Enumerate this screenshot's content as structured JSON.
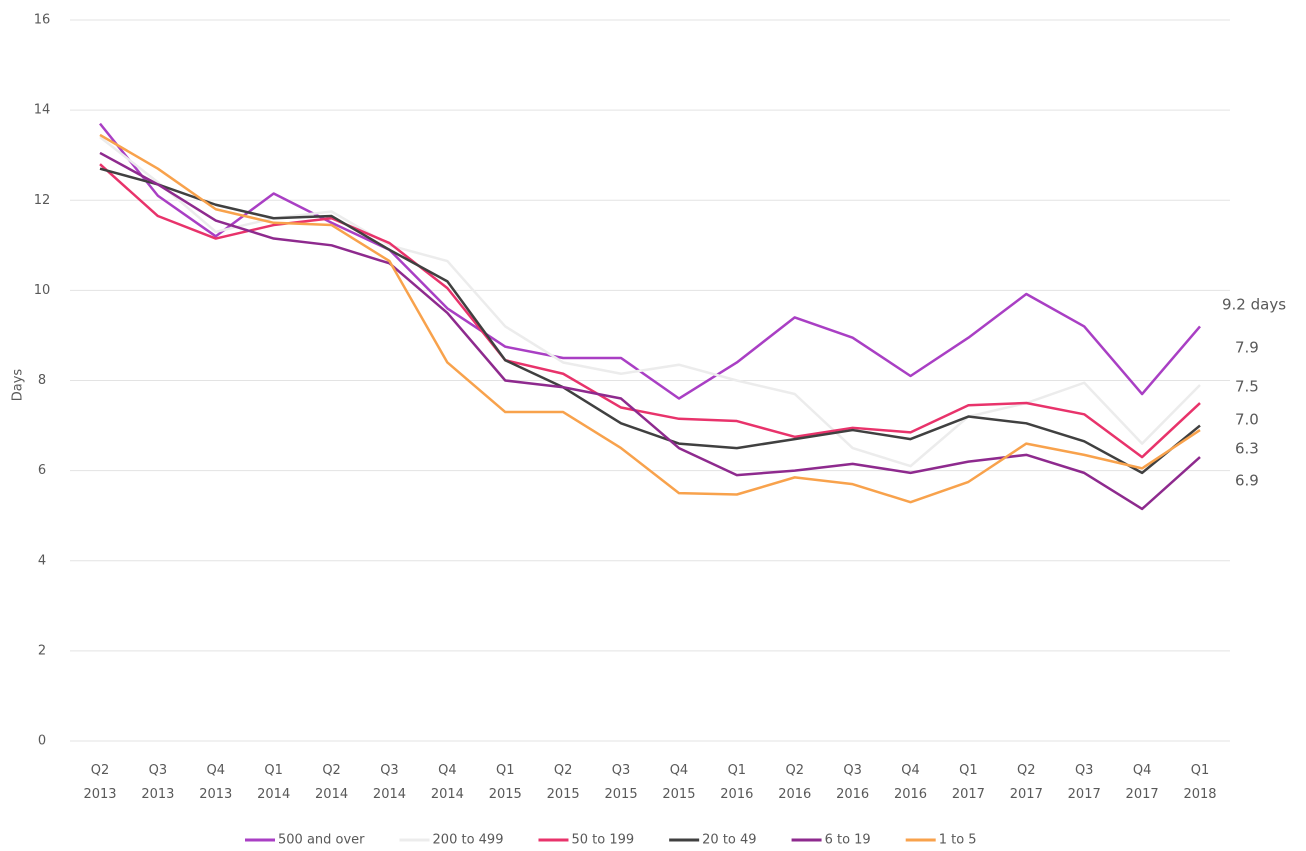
{
  "chart_data": {
    "type": "line",
    "y_label": "Days",
    "categories": [
      "Q2 2013",
      "Q3 2013",
      "Q4 2013",
      "Q1 2014",
      "Q2 2014",
      "Q3 2014",
      "Q4 2014",
      "Q1 2015",
      "Q2 2015",
      "Q3 2015",
      "Q4 2015",
      "Q1 2016",
      "Q2 2016",
      "Q3 2016",
      "Q4 2016",
      "Q1 2017",
      "Q2 2017",
      "Q3 2017",
      "Q4 2017",
      "Q1 2018"
    ],
    "ylim": [
      0,
      16
    ],
    "yticks": [
      0,
      2,
      4,
      6,
      8,
      10,
      12,
      14,
      16
    ],
    "grid": true,
    "legend": "bottom",
    "series": [
      {
        "name": "500 and over",
        "color": "#a93fc4",
        "values": [
          13.7,
          12.1,
          11.2,
          12.15,
          11.5,
          10.9,
          9.6,
          8.75,
          8.5,
          8.5,
          7.6,
          8.4,
          9.4,
          8.95,
          8.1,
          8.95,
          9.92,
          9.2,
          7.7,
          9.2
        ],
        "value_labels": [
          null,
          null,
          null,
          null,
          null,
          null,
          null,
          null,
          null,
          null,
          null,
          null,
          null,
          null,
          null,
          null,
          null,
          null,
          null,
          "9.2 days"
        ]
      },
      {
        "name": "200 to 499",
        "color": "#ececec",
        "values": [
          13.4,
          12.4,
          11.3,
          11.6,
          11.75,
          11.0,
          10.65,
          9.2,
          8.4,
          8.15,
          8.35,
          8.0,
          7.7,
          6.5,
          6.1,
          7.2,
          7.5,
          7.95,
          6.6,
          7.9
        ],
        "value_labels": [
          null,
          null,
          null,
          null,
          null,
          null,
          null,
          null,
          null,
          null,
          null,
          null,
          null,
          null,
          null,
          null,
          null,
          null,
          null,
          "7.9"
        ]
      },
      {
        "name": "50 to 199",
        "color": "#e8336b",
        "values": [
          12.8,
          11.65,
          11.15,
          11.45,
          11.6,
          11.05,
          10.05,
          8.45,
          8.15,
          7.4,
          7.15,
          7.1,
          6.75,
          6.95,
          6.85,
          7.45,
          7.5,
          7.25,
          6.3,
          7.5
        ],
        "value_labels": [
          null,
          null,
          null,
          null,
          null,
          null,
          null,
          null,
          null,
          null,
          null,
          null,
          null,
          null,
          null,
          null,
          null,
          null,
          null,
          "7.5"
        ]
      },
      {
        "name": "20 to 49",
        "color": "#404040",
        "values": [
          12.7,
          12.35,
          11.9,
          11.6,
          11.65,
          10.9,
          10.2,
          8.45,
          7.85,
          7.05,
          6.6,
          6.5,
          6.7,
          6.9,
          6.7,
          7.2,
          7.05,
          6.65,
          5.95,
          7.0
        ],
        "value_labels": [
          null,
          null,
          null,
          null,
          null,
          null,
          null,
          null,
          null,
          null,
          null,
          null,
          null,
          null,
          null,
          null,
          null,
          null,
          null,
          "7.0"
        ]
      },
      {
        "name": "6 to 19",
        "color": "#8e2a8e",
        "values": [
          13.05,
          12.35,
          11.55,
          11.15,
          11.0,
          10.6,
          9.5,
          8.0,
          7.85,
          7.6,
          6.5,
          5.9,
          6.0,
          6.15,
          5.95,
          6.2,
          6.35,
          5.95,
          5.15,
          6.3
        ],
        "value_labels": [
          null,
          null,
          null,
          null,
          null,
          null,
          null,
          null,
          null,
          null,
          null,
          null,
          null,
          null,
          null,
          null,
          null,
          null,
          null,
          "6.3"
        ]
      },
      {
        "name": "1 to 5",
        "color": "#f8a24c",
        "values": [
          13.45,
          12.7,
          11.8,
          11.5,
          11.45,
          10.65,
          8.4,
          7.3,
          7.3,
          6.5,
          5.5,
          5.47,
          5.85,
          5.7,
          5.3,
          5.75,
          6.6,
          6.35,
          6.05,
          6.9
        ],
        "value_labels": [
          null,
          null,
          null,
          null,
          null,
          null,
          null,
          null,
          null,
          null,
          null,
          null,
          null,
          null,
          null,
          null,
          null,
          null,
          null,
          "6.9"
        ]
      }
    ]
  }
}
